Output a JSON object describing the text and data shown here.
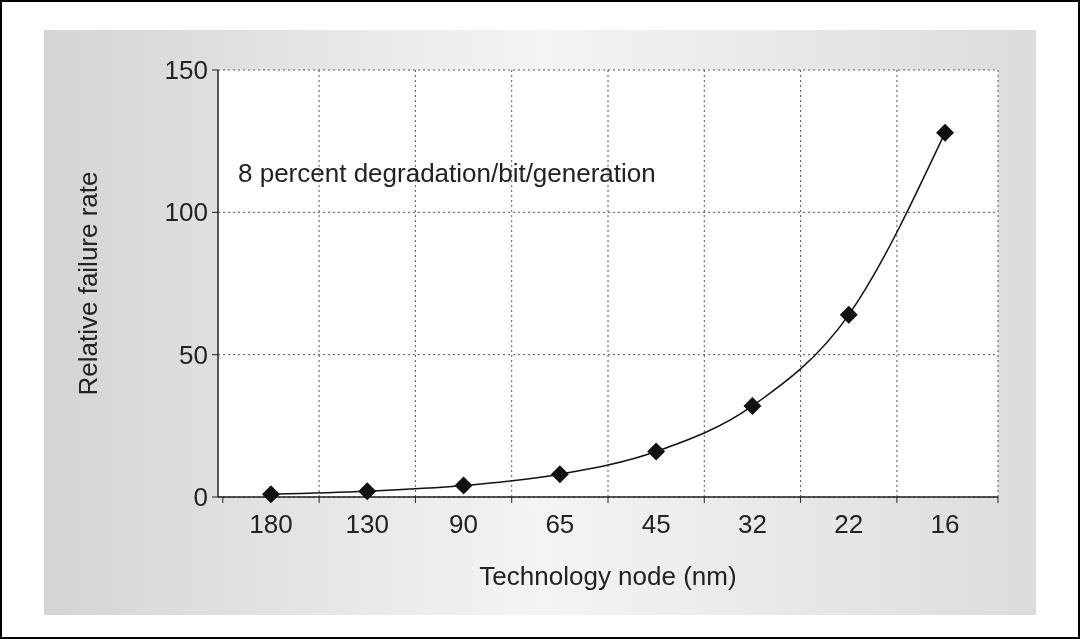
{
  "chart_data": {
    "type": "line",
    "xlabel": "Technology node (nm)",
    "ylabel": "Relative failure rate",
    "categories": [
      "180",
      "130",
      "90",
      "65",
      "45",
      "32",
      "22",
      "16"
    ],
    "series": [
      {
        "color": "#111111",
        "values": [
          1,
          2,
          4,
          8,
          16,
          32,
          64,
          128
        ]
      }
    ],
    "ylim": [
      0,
      150
    ],
    "yticks": [
      0,
      50,
      100,
      150
    ],
    "grid": true,
    "marker": "diamond",
    "line_style": "solid",
    "annotations": [
      "8 percent degradation/bit/generation"
    ]
  }
}
